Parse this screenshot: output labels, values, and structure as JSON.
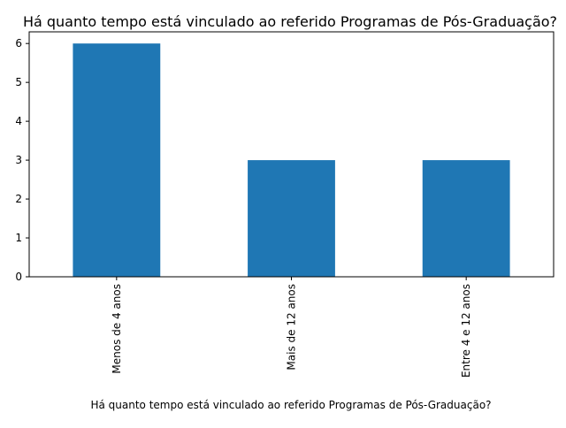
{
  "chart_data": {
    "type": "bar",
    "title": "Há quanto tempo está vinculado ao referido Programas de Pós-Graduação?",
    "xlabel": "Há quanto tempo está vinculado ao referido Programas de Pós-Graduação?",
    "ylabel": "",
    "categories": [
      "Menos de 4 anos",
      "Mais de 12 anos",
      "Entre 4 e 12 anos"
    ],
    "values": [
      6,
      3,
      3
    ],
    "ylim": [
      0,
      6.3
    ],
    "yticks": [
      "0",
      "1",
      "2",
      "3",
      "4",
      "5",
      "6"
    ],
    "grid": false,
    "legend": "none",
    "bar_color": "#1f77b4"
  }
}
